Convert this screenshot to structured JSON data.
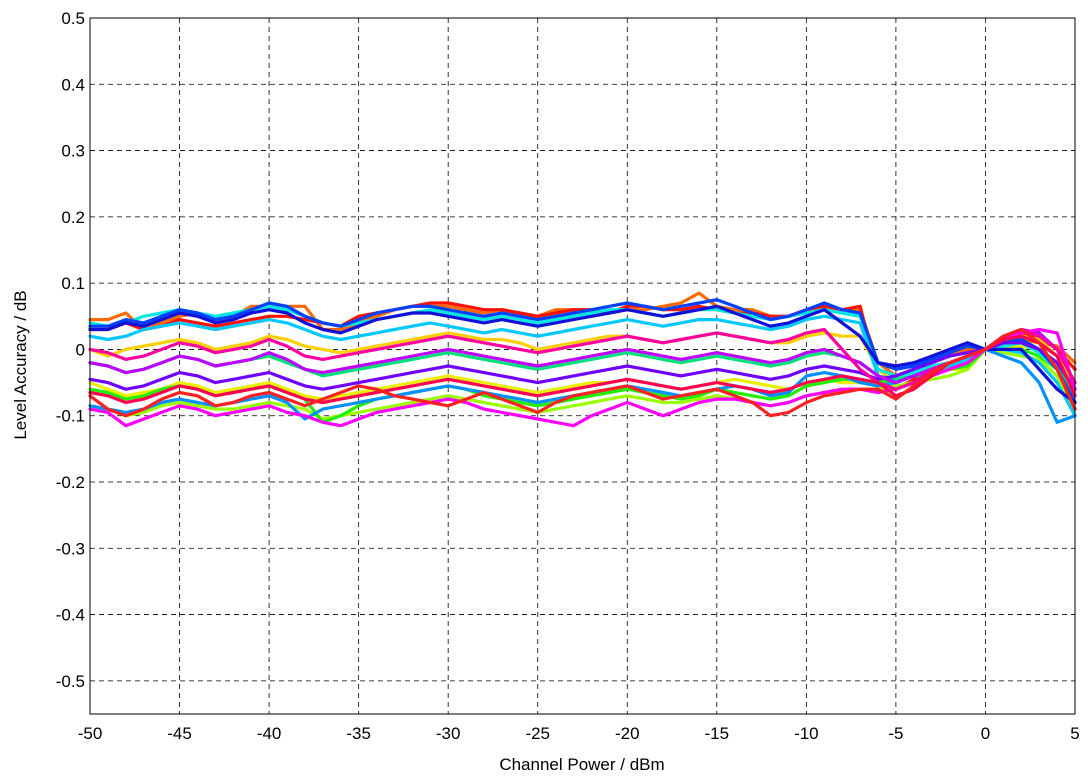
{
  "chart_data": {
    "type": "line",
    "title": "",
    "xlabel": "Channel Power / dBm",
    "ylabel": "Level Accuracy / dB",
    "xlim": [
      -50,
      5
    ],
    "ylim": [
      -0.55,
      0.5
    ],
    "xticks": [
      -50,
      -45,
      -40,
      -35,
      -30,
      -25,
      -20,
      -15,
      -10,
      -5,
      0,
      5
    ],
    "xtick_labels": [
      "-50",
      "-45",
      "-40",
      "-35",
      "-30",
      "-25",
      "-20",
      "-15",
      "-10",
      "-5",
      "0",
      "5"
    ],
    "yticks": [
      0.5,
      0.4,
      0.3,
      0.2,
      0.1,
      0,
      -0.1,
      -0.2,
      -0.3,
      -0.4,
      -0.5
    ],
    "ytick_labels": [
      "0.5",
      "0.4",
      "0.3",
      "0.2",
      "0.1",
      "0",
      "-0.1",
      "-0.2",
      "-0.3",
      "-0.4",
      "-0.5"
    ],
    "grid": true,
    "legend": "none",
    "x": [
      -50,
      -49,
      -48,
      -47,
      -46,
      -45,
      -44,
      -43,
      -42,
      -41,
      -40,
      -39,
      -38,
      -37,
      -36,
      -35,
      -34,
      -33,
      -32,
      -31,
      -30,
      -29,
      -28,
      -27,
      -26,
      -25,
      -24,
      -23,
      -22,
      -21,
      -20,
      -19,
      -18,
      -17,
      -16,
      -15,
      -14,
      -13,
      -12,
      -11,
      -10,
      -9,
      -8,
      -7,
      -6,
      -5,
      -4,
      -3,
      -2,
      -1,
      0,
      1,
      2,
      3,
      4,
      5
    ],
    "series": [
      {
        "color": "#ff6a00",
        "values": [
          0.045,
          0.045,
          0.055,
          0.03,
          0.04,
          0.05,
          0.055,
          0.045,
          0.05,
          0.065,
          0.065,
          0.065,
          0.065,
          0.03,
          0.03,
          0.04,
          0.05,
          0.06,
          0.065,
          0.065,
          0.065,
          0.06,
          0.055,
          0.06,
          0.055,
          0.05,
          0.06,
          0.06,
          0.05,
          0.055,
          0.06,
          0.06,
          0.065,
          0.07,
          0.085,
          0.065,
          0.06,
          0.06,
          0.05,
          0.05,
          0.06,
          0.065,
          0.06,
          0.06,
          -0.02,
          -0.04,
          -0.03,
          -0.02,
          -0.01,
          0.0,
          0.0,
          0.01,
          0.015,
          0.01,
          0.005,
          -0.02
        ]
      },
      {
        "color": "#ff1000",
        "values": [
          0.03,
          0.03,
          0.04,
          0.03,
          0.035,
          0.045,
          0.04,
          0.035,
          0.04,
          0.045,
          0.05,
          0.05,
          0.045,
          0.04,
          0.035,
          0.05,
          0.055,
          0.06,
          0.065,
          0.07,
          0.07,
          0.065,
          0.06,
          0.06,
          0.055,
          0.05,
          0.055,
          0.06,
          0.06,
          0.055,
          0.065,
          0.065,
          0.06,
          0.06,
          0.065,
          0.06,
          0.055,
          0.055,
          0.05,
          0.05,
          0.06,
          0.065,
          0.06,
          0.065,
          -0.04,
          -0.06,
          -0.045,
          -0.03,
          -0.02,
          -0.01,
          0.0,
          0.015,
          0.025,
          0.02,
          0.0,
          -0.03
        ]
      },
      {
        "color": "#ffd000",
        "values": [
          0.0,
          -0.01,
          0.0,
          0.005,
          0.01,
          0.015,
          0.01,
          0.0,
          0.005,
          0.01,
          0.02,
          0.015,
          0.005,
          0.0,
          -0.005,
          0.0,
          0.005,
          0.01,
          0.015,
          0.02,
          0.025,
          0.02,
          0.015,
          0.015,
          0.01,
          0.0,
          0.005,
          0.01,
          0.015,
          0.02,
          0.02,
          0.015,
          0.01,
          0.015,
          0.02,
          0.025,
          0.02,
          0.015,
          0.01,
          0.01,
          0.02,
          0.025,
          0.02,
          0.02,
          -0.03,
          -0.05,
          -0.04,
          -0.03,
          -0.02,
          -0.01,
          0.0,
          0.01,
          0.02,
          0.015,
          -0.01,
          -0.06
        ]
      },
      {
        "color": "#e8f000",
        "values": [
          -0.05,
          -0.06,
          -0.07,
          -0.065,
          -0.06,
          -0.05,
          -0.055,
          -0.065,
          -0.06,
          -0.055,
          -0.05,
          -0.06,
          -0.07,
          -0.075,
          -0.07,
          -0.065,
          -0.06,
          -0.055,
          -0.05,
          -0.045,
          -0.04,
          -0.045,
          -0.05,
          -0.055,
          -0.06,
          -0.065,
          -0.06,
          -0.055,
          -0.05,
          -0.05,
          -0.045,
          -0.05,
          -0.055,
          -0.06,
          -0.055,
          -0.05,
          -0.045,
          -0.05,
          -0.055,
          -0.06,
          -0.05,
          -0.045,
          -0.05,
          -0.05,
          -0.05,
          -0.045,
          -0.04,
          -0.035,
          -0.03,
          -0.03,
          0.0,
          0.0,
          0.005,
          0.0,
          -0.02,
          -0.07
        ]
      },
      {
        "color": "#9cff00",
        "values": [
          -0.085,
          -0.09,
          -0.1,
          -0.095,
          -0.085,
          -0.08,
          -0.085,
          -0.09,
          -0.09,
          -0.085,
          -0.08,
          -0.085,
          -0.09,
          -0.105,
          -0.1,
          -0.095,
          -0.09,
          -0.085,
          -0.08,
          -0.075,
          -0.07,
          -0.075,
          -0.08,
          -0.085,
          -0.09,
          -0.095,
          -0.09,
          -0.085,
          -0.08,
          -0.075,
          -0.07,
          -0.075,
          -0.08,
          -0.08,
          -0.075,
          -0.07,
          -0.075,
          -0.08,
          -0.085,
          -0.08,
          -0.07,
          -0.065,
          -0.06,
          -0.06,
          -0.06,
          -0.055,
          -0.05,
          -0.045,
          -0.04,
          -0.03,
          0.0,
          -0.005,
          -0.01,
          -0.015,
          -0.04,
          -0.1
        ]
      },
      {
        "color": "#22ee00",
        "values": [
          -0.06,
          -0.065,
          -0.075,
          -0.07,
          -0.06,
          -0.055,
          -0.06,
          -0.07,
          -0.065,
          -0.06,
          -0.055,
          -0.065,
          -0.075,
          -0.11,
          -0.1,
          -0.085,
          -0.075,
          -0.07,
          -0.065,
          -0.06,
          -0.055,
          -0.06,
          -0.07,
          -0.075,
          -0.08,
          -0.085,
          -0.08,
          -0.075,
          -0.07,
          -0.065,
          -0.06,
          -0.065,
          -0.07,
          -0.075,
          -0.07,
          -0.06,
          -0.065,
          -0.07,
          -0.075,
          -0.07,
          -0.055,
          -0.05,
          -0.045,
          -0.045,
          -0.05,
          -0.045,
          -0.04,
          -0.035,
          -0.03,
          -0.025,
          0.0,
          0.0,
          0.0,
          -0.01,
          -0.03,
          -0.09
        ]
      },
      {
        "color": "#00e07a",
        "values": [
          -0.02,
          -0.025,
          -0.035,
          -0.03,
          -0.02,
          -0.01,
          -0.015,
          -0.025,
          -0.02,
          -0.015,
          -0.01,
          -0.02,
          -0.03,
          -0.04,
          -0.035,
          -0.03,
          -0.025,
          -0.02,
          -0.015,
          -0.01,
          -0.005,
          -0.01,
          -0.015,
          -0.02,
          -0.025,
          -0.03,
          -0.025,
          -0.02,
          -0.015,
          -0.01,
          -0.005,
          -0.01,
          -0.015,
          -0.02,
          -0.015,
          -0.01,
          -0.015,
          -0.02,
          -0.025,
          -0.02,
          -0.01,
          -0.005,
          -0.01,
          -0.02,
          -0.04,
          -0.045,
          -0.04,
          -0.035,
          -0.03,
          -0.02,
          0.0,
          0.005,
          0.01,
          0.0,
          -0.02,
          -0.08
        ]
      },
      {
        "color": "#00e8e0",
        "values": [
          0.04,
          0.035,
          0.04,
          0.05,
          0.055,
          0.06,
          0.055,
          0.05,
          0.055,
          0.06,
          0.065,
          0.06,
          0.05,
          0.04,
          0.035,
          0.04,
          0.045,
          0.05,
          0.055,
          0.06,
          0.055,
          0.05,
          0.045,
          0.05,
          0.045,
          0.04,
          0.045,
          0.05,
          0.055,
          0.06,
          0.06,
          0.055,
          0.05,
          0.055,
          0.06,
          0.06,
          0.055,
          0.05,
          0.045,
          0.05,
          0.055,
          0.06,
          0.055,
          0.05,
          -0.03,
          -0.04,
          -0.035,
          -0.025,
          -0.02,
          -0.01,
          0.0,
          0.005,
          0.01,
          -0.005,
          -0.03,
          -0.09
        ]
      },
      {
        "color": "#00c8ff",
        "values": [
          0.02,
          0.015,
          0.02,
          0.03,
          0.035,
          0.04,
          0.035,
          0.03,
          0.035,
          0.04,
          0.045,
          0.04,
          0.03,
          0.02,
          0.015,
          0.02,
          0.025,
          0.03,
          0.035,
          0.04,
          0.035,
          0.03,
          0.025,
          0.03,
          0.025,
          0.02,
          0.025,
          0.03,
          0.035,
          0.04,
          0.045,
          0.04,
          0.035,
          0.04,
          0.045,
          0.045,
          0.04,
          0.035,
          0.03,
          0.035,
          0.045,
          0.05,
          0.045,
          0.04,
          -0.04,
          -0.05,
          -0.04,
          -0.03,
          -0.025,
          -0.015,
          0.0,
          0.0,
          -0.005,
          -0.02,
          -0.05,
          -0.1
        ]
      },
      {
        "color": "#0090ff",
        "values": [
          -0.085,
          -0.09,
          -0.095,
          -0.09,
          -0.08,
          -0.075,
          -0.08,
          -0.085,
          -0.08,
          -0.075,
          -0.07,
          -0.08,
          -0.105,
          -0.09,
          -0.085,
          -0.08,
          -0.075,
          -0.07,
          -0.065,
          -0.06,
          -0.055,
          -0.06,
          -0.065,
          -0.07,
          -0.075,
          -0.08,
          -0.075,
          -0.07,
          -0.065,
          -0.06,
          -0.055,
          -0.06,
          -0.065,
          -0.07,
          -0.065,
          -0.06,
          -0.055,
          -0.06,
          -0.07,
          -0.065,
          -0.04,
          -0.035,
          -0.04,
          -0.05,
          -0.055,
          -0.05,
          -0.04,
          -0.03,
          -0.02,
          -0.01,
          0.0,
          -0.01,
          -0.02,
          -0.05,
          -0.11,
          -0.1
        ]
      },
      {
        "color": "#0040ff",
        "values": [
          0.035,
          0.035,
          0.045,
          0.04,
          0.05,
          0.06,
          0.055,
          0.045,
          0.05,
          0.06,
          0.07,
          0.065,
          0.05,
          0.04,
          0.035,
          0.045,
          0.055,
          0.06,
          0.065,
          0.065,
          0.06,
          0.055,
          0.05,
          0.055,
          0.05,
          0.045,
          0.05,
          0.055,
          0.06,
          0.065,
          0.07,
          0.065,
          0.06,
          0.065,
          0.07,
          0.075,
          0.065,
          0.055,
          0.045,
          0.05,
          0.06,
          0.07,
          0.06,
          0.055,
          -0.02,
          -0.03,
          -0.025,
          -0.015,
          -0.005,
          0.005,
          0.0,
          0.01,
          0.015,
          0.0,
          -0.03,
          -0.08
        ]
      },
      {
        "color": "#1010d8",
        "values": [
          0.03,
          0.03,
          0.04,
          0.035,
          0.045,
          0.055,
          0.05,
          0.04,
          0.045,
          0.055,
          0.06,
          0.055,
          0.04,
          0.03,
          0.025,
          0.035,
          0.045,
          0.05,
          0.055,
          0.055,
          0.05,
          0.045,
          0.04,
          0.045,
          0.04,
          0.035,
          0.04,
          0.045,
          0.05,
          0.055,
          0.06,
          0.055,
          0.05,
          0.055,
          0.06,
          0.065,
          0.055,
          0.045,
          0.035,
          0.04,
          0.05,
          0.06,
          0.04,
          0.02,
          -0.02,
          -0.025,
          -0.02,
          -0.01,
          0.0,
          0.01,
          0.0,
          0.0,
          0.0,
          -0.03,
          -0.06,
          -0.08
        ]
      },
      {
        "color": "#7000ff",
        "values": [
          -0.045,
          -0.05,
          -0.06,
          -0.055,
          -0.045,
          -0.035,
          -0.04,
          -0.05,
          -0.045,
          -0.04,
          -0.035,
          -0.045,
          -0.055,
          -0.06,
          -0.055,
          -0.05,
          -0.045,
          -0.04,
          -0.035,
          -0.03,
          -0.025,
          -0.03,
          -0.035,
          -0.04,
          -0.045,
          -0.05,
          -0.045,
          -0.04,
          -0.035,
          -0.03,
          -0.025,
          -0.03,
          -0.035,
          -0.04,
          -0.035,
          -0.03,
          -0.035,
          -0.04,
          -0.045,
          -0.04,
          -0.03,
          -0.025,
          -0.03,
          -0.035,
          -0.045,
          -0.04,
          -0.03,
          -0.02,
          -0.01,
          -0.005,
          0.0,
          0.01,
          0.01,
          0.0,
          -0.02,
          -0.06
        ]
      },
      {
        "color": "#c000ff",
        "values": [
          -0.02,
          -0.025,
          -0.035,
          -0.03,
          -0.02,
          -0.01,
          -0.015,
          -0.025,
          -0.02,
          -0.015,
          -0.005,
          -0.015,
          -0.03,
          -0.035,
          -0.03,
          -0.025,
          -0.02,
          -0.015,
          -0.01,
          -0.005,
          0.0,
          -0.005,
          -0.01,
          -0.015,
          -0.02,
          -0.025,
          -0.02,
          -0.015,
          -0.01,
          -0.005,
          0.0,
          -0.005,
          -0.01,
          -0.015,
          -0.01,
          -0.005,
          -0.01,
          -0.015,
          -0.02,
          -0.015,
          -0.005,
          0.0,
          -0.01,
          -0.02,
          -0.04,
          -0.05,
          -0.04,
          -0.03,
          -0.02,
          -0.01,
          0.0,
          0.02,
          0.03,
          0.025,
          0.0,
          -0.05
        ]
      },
      {
        "color": "#ff00ff",
        "values": [
          -0.09,
          -0.095,
          -0.115,
          -0.105,
          -0.095,
          -0.085,
          -0.09,
          -0.1,
          -0.095,
          -0.09,
          -0.085,
          -0.095,
          -0.1,
          -0.11,
          -0.115,
          -0.105,
          -0.095,
          -0.09,
          -0.085,
          -0.08,
          -0.075,
          -0.08,
          -0.09,
          -0.095,
          -0.1,
          -0.105,
          -0.11,
          -0.115,
          -0.1,
          -0.09,
          -0.08,
          -0.09,
          -0.1,
          -0.09,
          -0.08,
          -0.075,
          -0.075,
          -0.08,
          -0.085,
          -0.08,
          -0.07,
          -0.065,
          -0.06,
          -0.06,
          -0.065,
          -0.06,
          -0.05,
          -0.04,
          -0.03,
          -0.02,
          0.0,
          0.015,
          0.025,
          0.03,
          0.025,
          -0.06
        ]
      },
      {
        "color": "#ff00a0",
        "values": [
          0.0,
          -0.005,
          -0.015,
          -0.01,
          0.0,
          0.01,
          0.005,
          -0.005,
          0.0,
          0.005,
          0.015,
          0.005,
          -0.01,
          -0.015,
          -0.01,
          -0.005,
          0.0,
          0.005,
          0.01,
          0.015,
          0.02,
          0.015,
          0.01,
          0.005,
          0.0,
          -0.005,
          0.0,
          0.005,
          0.01,
          0.015,
          0.02,
          0.015,
          0.01,
          0.015,
          0.02,
          0.025,
          0.02,
          0.015,
          0.01,
          0.015,
          0.025,
          0.03,
          0.0,
          -0.03,
          -0.05,
          -0.06,
          -0.05,
          -0.03,
          -0.02,
          -0.01,
          0.0,
          0.02,
          0.03,
          0.02,
          0.0,
          -0.05
        ]
      },
      {
        "color": "#ff0050",
        "values": [
          -0.065,
          -0.07,
          -0.08,
          -0.075,
          -0.065,
          -0.055,
          -0.06,
          -0.07,
          -0.065,
          -0.06,
          -0.055,
          -0.065,
          -0.075,
          -0.08,
          -0.075,
          -0.07,
          -0.065,
          -0.06,
          -0.055,
          -0.05,
          -0.045,
          -0.05,
          -0.055,
          -0.06,
          -0.065,
          -0.07,
          -0.065,
          -0.06,
          -0.055,
          -0.05,
          -0.045,
          -0.05,
          -0.055,
          -0.06,
          -0.055,
          -0.05,
          -0.055,
          -0.06,
          -0.065,
          -0.06,
          -0.05,
          -0.045,
          -0.04,
          -0.045,
          -0.05,
          -0.07,
          -0.06,
          -0.04,
          -0.02,
          -0.01,
          0.0,
          0.015,
          0.02,
          0.01,
          -0.01,
          -0.07
        ]
      },
      {
        "color": "#ff2020",
        "values": [
          -0.07,
          -0.09,
          -0.1,
          -0.09,
          -0.075,
          -0.065,
          -0.07,
          -0.085,
          -0.08,
          -0.07,
          -0.065,
          -0.075,
          -0.085,
          -0.075,
          -0.065,
          -0.055,
          -0.06,
          -0.07,
          -0.075,
          -0.08,
          -0.085,
          -0.075,
          -0.065,
          -0.075,
          -0.085,
          -0.095,
          -0.08,
          -0.07,
          -0.065,
          -0.06,
          -0.055,
          -0.065,
          -0.075,
          -0.07,
          -0.065,
          -0.06,
          -0.07,
          -0.08,
          -0.1,
          -0.095,
          -0.08,
          -0.07,
          -0.065,
          -0.06,
          -0.06,
          -0.075,
          -0.055,
          -0.035,
          -0.02,
          -0.01,
          0.0,
          0.02,
          0.03,
          0.01,
          -0.03,
          -0.09
        ]
      }
    ]
  }
}
